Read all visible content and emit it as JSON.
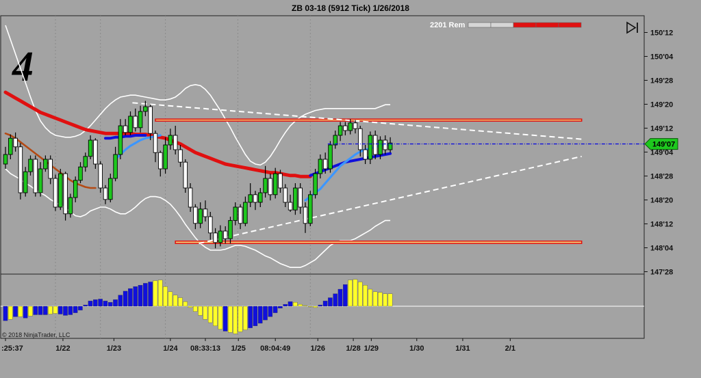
{
  "title": "ZB 03-18 (5912 Tick)  1/26/2018",
  "panel_number": "4",
  "bar_counter": {
    "text": "2201 Rem",
    "segments_remaining": 3,
    "segments_total": 5
  },
  "copyright": "© 2018 NinjaTrader, LLC",
  "last_price_label": "149'07",
  "colors": {
    "bg": "#a3a3a3",
    "up": "#1ec81e",
    "down": "#ffffff",
    "ema_slow": "#e01010",
    "ema_mid": "#b44a14",
    "ema_fast_blue": "#1010dc",
    "ema_fast_light": "#3c96ff",
    "hist_pos_blue": "#1010dc",
    "hist_yellow": "#ffff28",
    "box_outline": "#e01010",
    "box_fill": "#f0cc78",
    "price_marker": "#1ec81e"
  },
  "chart_data": {
    "type": "candlestick",
    "title": "ZB 03-18 (5912 Tick)  1/26/2018",
    "y_axis": {
      "ticks": [
        "150'12",
        "150'04",
        "149'28",
        "149'20",
        "149'12",
        "149'04",
        "148'28",
        "148'20",
        "148'12",
        "148'04",
        "147'28"
      ],
      "tick_values": [
        150.375,
        150.125,
        149.875,
        149.625,
        149.375,
        149.125,
        148.875,
        148.625,
        148.375,
        148.125,
        147.875
      ],
      "range": [
        147.85,
        150.55
      ]
    },
    "x_axis": {
      "ticks": [
        ":25:37",
        "1/22",
        "1/23",
        "1/24",
        "08:33:13",
        "1/25",
        "08:04:49",
        "1/26",
        "1/28",
        "1/29",
        "1/30",
        "1/31",
        "2/1"
      ],
      "tick_bars": [
        0,
        11.5,
        21.7,
        33,
        40,
        46.6,
        54,
        62.5,
        69.6,
        73.2,
        82.3,
        91.5,
        101
      ]
    },
    "session_lines_at_bar": [
      10,
      19,
      32,
      46.5,
      61
    ],
    "candles_open_close_high_low": [
      [
        149.0,
        149.1,
        149.18,
        148.95
      ],
      [
        149.1,
        149.27,
        149.31,
        149.05
      ],
      [
        149.27,
        149.18,
        149.33,
        149.13
      ],
      [
        149.18,
        148.7,
        149.22,
        148.63
      ],
      [
        148.7,
        148.92,
        148.97,
        148.66
      ],
      [
        148.92,
        149.05,
        149.09,
        148.88
      ],
      [
        149.05,
        148.7,
        149.09,
        148.66
      ],
      [
        148.7,
        148.95,
        149.02,
        148.66
      ],
      [
        148.95,
        149.05,
        149.09,
        148.92
      ],
      [
        149.05,
        148.85,
        149.09,
        148.79
      ],
      [
        148.85,
        148.55,
        148.89,
        148.51
      ],
      [
        148.55,
        148.9,
        148.95,
        148.52
      ],
      [
        148.9,
        148.48,
        148.92,
        148.41
      ],
      [
        148.48,
        148.65,
        148.69,
        148.44
      ],
      [
        148.65,
        148.83,
        148.87,
        148.6
      ],
      [
        148.83,
        148.97,
        149.02,
        148.8
      ],
      [
        148.97,
        149.08,
        149.12,
        148.92
      ],
      [
        149.08,
        149.25,
        149.3,
        149.05
      ],
      [
        149.25,
        149.0,
        149.27,
        148.95
      ],
      [
        149.0,
        148.75,
        149.03,
        148.7
      ],
      [
        148.75,
        148.63,
        148.78,
        148.58
      ],
      [
        148.63,
        148.85,
        148.9,
        148.6
      ],
      [
        148.85,
        149.1,
        149.18,
        148.82
      ],
      [
        149.1,
        149.4,
        149.47,
        149.05
      ],
      [
        149.4,
        149.33,
        149.47,
        149.3
      ],
      [
        149.33,
        149.5,
        149.55,
        149.3
      ],
      [
        149.5,
        149.38,
        149.58,
        149.34
      ],
      [
        149.38,
        149.55,
        149.61,
        149.33
      ],
      [
        149.55,
        149.6,
        149.66,
        149.5
      ],
      [
        149.6,
        149.32,
        149.62,
        149.25
      ],
      [
        149.32,
        149.12,
        149.35,
        149.02
      ],
      [
        149.12,
        148.95,
        149.14,
        148.87
      ],
      [
        148.95,
        149.2,
        149.28,
        148.9
      ],
      [
        149.2,
        149.3,
        149.37,
        149.15
      ],
      [
        149.3,
        149.15,
        149.4,
        149.1
      ],
      [
        149.15,
        149.02,
        149.2,
        148.97
      ],
      [
        149.02,
        148.75,
        149.05,
        148.7
      ],
      [
        148.75,
        148.55,
        148.8,
        148.5
      ],
      [
        148.55,
        148.38,
        148.58,
        148.32
      ],
      [
        148.38,
        148.53,
        148.6,
        148.33
      ],
      [
        148.53,
        148.45,
        148.62,
        148.4
      ],
      [
        148.45,
        148.28,
        148.5,
        148.21
      ],
      [
        148.28,
        148.18,
        148.33,
        148.12
      ],
      [
        148.18,
        148.3,
        148.36,
        148.14
      ],
      [
        148.3,
        148.22,
        148.35,
        148.17
      ],
      [
        148.22,
        148.41,
        148.45,
        148.17
      ],
      [
        148.41,
        148.55,
        148.6,
        148.36
      ],
      [
        148.55,
        148.38,
        148.58,
        148.32
      ],
      [
        148.38,
        148.6,
        148.66,
        148.35
      ],
      [
        148.6,
        148.68,
        148.8,
        148.55
      ],
      [
        148.68,
        148.6,
        148.72,
        148.52
      ],
      [
        148.6,
        148.7,
        148.75,
        148.55
      ],
      [
        148.7,
        148.85,
        148.98,
        148.65
      ],
      [
        148.85,
        148.68,
        148.9,
        148.62
      ],
      [
        148.68,
        148.9,
        148.96,
        148.64
      ],
      [
        148.9,
        148.75,
        148.94,
        148.7
      ],
      [
        148.75,
        148.6,
        148.79,
        148.55
      ],
      [
        148.6,
        148.52,
        148.68,
        148.5
      ],
      [
        148.52,
        148.75,
        148.8,
        148.47
      ],
      [
        148.75,
        148.55,
        148.8,
        148.48
      ],
      [
        148.55,
        148.38,
        148.6,
        148.28
      ],
      [
        148.38,
        148.68,
        148.72,
        148.35
      ],
      [
        148.68,
        148.9,
        148.95,
        148.64
      ],
      [
        148.9,
        149.05,
        149.1,
        148.85
      ],
      [
        149.05,
        148.95,
        149.12,
        148.9
      ],
      [
        148.95,
        149.2,
        149.24,
        148.91
      ],
      [
        149.2,
        149.3,
        149.35,
        149.16
      ],
      [
        149.3,
        149.4,
        149.44,
        149.24
      ],
      [
        149.4,
        149.35,
        149.44,
        149.3
      ],
      [
        149.35,
        149.43,
        149.47,
        149.31
      ],
      [
        149.43,
        149.37,
        149.46,
        149.32
      ],
      [
        149.37,
        149.15,
        149.4,
        149.08
      ],
      [
        149.15,
        149.05,
        149.2,
        149.0
      ],
      [
        149.05,
        149.3,
        149.34,
        149.0
      ],
      [
        149.3,
        149.1,
        149.35,
        149.05
      ],
      [
        149.1,
        149.25,
        149.29,
        149.05
      ],
      [
        149.25,
        149.15,
        149.3,
        149.1
      ],
      [
        149.15,
        149.22,
        149.28,
        149.12
      ]
    ],
    "series": [
      {
        "style": "thick red moving average",
        "values": [
          149.75,
          149.72,
          149.69,
          149.66,
          149.63,
          149.6,
          149.57,
          149.54,
          149.52,
          149.5,
          149.48,
          149.46,
          149.44,
          149.42,
          149.4,
          149.38,
          149.36,
          149.35,
          149.34,
          149.33,
          149.32,
          149.32,
          149.32,
          149.32,
          149.32,
          149.32,
          149.31,
          149.31,
          149.31,
          149.3,
          149.29,
          149.28,
          149.27,
          149.25,
          149.23,
          149.21,
          149.18,
          149.15,
          149.12,
          149.1,
          149.08,
          149.06,
          149.04,
          149.02,
          149.0,
          148.99,
          148.98,
          148.97,
          148.96,
          148.95,
          148.94,
          148.93,
          148.92,
          148.91,
          148.91,
          148.9,
          148.89,
          148.88,
          148.88,
          148.87,
          148.87,
          148.87
        ]
      },
      {
        "style": "brown moving average",
        "values": [
          149.32,
          149.3,
          149.27,
          149.23,
          149.19,
          149.15,
          149.11,
          149.07,
          149.03,
          148.99,
          148.95,
          148.91,
          148.87,
          148.83,
          148.8,
          148.78,
          148.76,
          148.75,
          148.75
        ]
      },
      {
        "style": "blue moving average",
        "start_bar": 20,
        "values": [
          149.27,
          149.27,
          149.28,
          149.28,
          149.29,
          149.29,
          149.3,
          149.3,
          149.3
        ]
      },
      {
        "style": "blue moving average",
        "start_bar": 61,
        "values": [
          148.88,
          148.9,
          148.92,
          148.94,
          148.96,
          148.98,
          149.0,
          149.02,
          149.03,
          149.04,
          149.05,
          149.06,
          149.07,
          149.08,
          149.09,
          149.1,
          149.11
        ]
      },
      {
        "style": "light blue moving average",
        "start_bar": 22,
        "values": [
          149.05,
          149.1,
          149.15,
          149.19,
          149.22,
          149.25,
          149.27,
          149.28,
          149.29,
          149.3
        ]
      },
      {
        "style": "light blue moving average",
        "start_bar": 60,
        "values": [
          148.62,
          148.66,
          148.7,
          148.74,
          148.8,
          148.86,
          148.92,
          148.98,
          149.02,
          149.06,
          149.1,
          149.13,
          149.15,
          149.16,
          149.18,
          149.19,
          149.2,
          149.2
        ]
      },
      {
        "style": "white band upper",
        "values": [
          150.45,
          150.3,
          150.15,
          150.0,
          149.85,
          149.7,
          149.56,
          149.45,
          149.38,
          149.33,
          149.3,
          149.29,
          149.28,
          149.28,
          149.29,
          149.31,
          149.35,
          149.4,
          149.46,
          149.52,
          149.58,
          149.63,
          149.67,
          149.7,
          149.71,
          149.72,
          149.72,
          149.71,
          149.7,
          149.69,
          149.68,
          149.67,
          149.67,
          149.68,
          149.7,
          149.74,
          149.79,
          149.82,
          149.83,
          149.82,
          149.78,
          149.72,
          149.64,
          149.56,
          149.47,
          149.38,
          149.28,
          149.19,
          149.1,
          149.03,
          149.0,
          148.99,
          149.02,
          149.08,
          149.16,
          149.25,
          149.33,
          149.4,
          149.45,
          149.49,
          149.52,
          149.54,
          149.56,
          149.57,
          149.58,
          149.58,
          149.58,
          149.58,
          149.58,
          149.58,
          149.58,
          149.58,
          149.58,
          149.58,
          149.58,
          149.6,
          149.62,
          149.62
        ]
      },
      {
        "style": "white band lower",
        "values": [
          148.95,
          148.9,
          148.87,
          148.84,
          148.8,
          148.77,
          148.73,
          148.7,
          148.67,
          148.63,
          148.6,
          148.57,
          148.54,
          148.5,
          148.46,
          148.45,
          148.47,
          148.51,
          148.53,
          148.55,
          148.55,
          148.53,
          148.5,
          148.48,
          148.48,
          148.51,
          148.55,
          148.6,
          148.64,
          148.66,
          148.66,
          148.65,
          148.62,
          148.58,
          148.52,
          148.45,
          148.37,
          148.3,
          148.23,
          148.17,
          148.13,
          148.1,
          148.1,
          148.1,
          148.11,
          148.13,
          148.15,
          148.15,
          148.14,
          148.12,
          148.1,
          148.07,
          148.04,
          148.02,
          147.99,
          147.96,
          147.94,
          147.92,
          147.92,
          147.92,
          147.94,
          147.97,
          148.0,
          148.05,
          148.1,
          148.15,
          148.18,
          148.2,
          148.2,
          148.2,
          148.22,
          148.25,
          148.28,
          148.31,
          148.35,
          148.38,
          148.41,
          148.41
        ]
      }
    ],
    "trendlines": [
      {
        "style": "white dashed",
        "from": [
          25.4,
          149.64
        ],
        "to": [
          115.3,
          149.26
        ]
      },
      {
        "style": "white dashed",
        "from": [
          38.7,
          148.17
        ],
        "to": [
          115.3,
          149.08
        ]
      }
    ],
    "horizontal_boxes": [
      {
        "from_bar": 30,
        "to_bar": 115.3,
        "top": 149.47,
        "bottom": 149.45
      },
      {
        "from_bar": 34,
        "to_bar": 115.3,
        "top": 148.195,
        "bottom": 148.17
      }
    ],
    "last_price_line": {
      "value": 149.21,
      "from_bar": 64.5
    },
    "histogram": {
      "zero_ref": "horizontal baseline",
      "values": [
        -2.2,
        -2.0,
        -1.6,
        -1.6,
        -1.8,
        -1.5,
        -1.3,
        -1.3,
        -1.3,
        -1.2,
        -1.1,
        -1.2,
        -1.4,
        -1.3,
        -1.0,
        -0.6,
        0.2,
        0.8,
        1.0,
        1.1,
        0.8,
        0.6,
        1.0,
        1.7,
        2.3,
        2.7,
        3.0,
        3.2,
        3.5,
        3.7,
        3.9,
        4.0,
        3.0,
        2.2,
        1.7,
        1.3,
        0.7,
        -0.2,
        -0.8,
        -1.4,
        -2.0,
        -2.5,
        -3.0,
        -3.5,
        -3.8,
        -4.0,
        -4.2,
        -3.9,
        -3.6,
        -3.3,
        -3.0,
        -2.6,
        -2.1,
        -1.6,
        -1.0,
        -0.3,
        0.3,
        0.7,
        0.6,
        0.3,
        0.1,
        -0.1,
        -0.2,
        0.2,
        0.8,
        1.3,
        1.9,
        2.6,
        3.3,
        4.0,
        4.1,
        3.7,
        3.2,
        2.6,
        2.2,
        2.1,
        1.9,
        1.9
      ],
      "colors": [
        "b",
        "y",
        "b",
        "y",
        "b",
        "y",
        "b",
        "b",
        "b",
        "y",
        "y",
        "b",
        "b",
        "b",
        "b",
        "b",
        "b",
        "b",
        "b",
        "b",
        "b",
        "b",
        "b",
        "b",
        "b",
        "b",
        "b",
        "b",
        "b",
        "b",
        "y",
        "y",
        "y",
        "y",
        "y",
        "y",
        "y",
        "y",
        "y",
        "y",
        "y",
        "y",
        "y",
        "y",
        "b",
        "y",
        "y",
        "y",
        "y",
        "b",
        "b",
        "b",
        "b",
        "b",
        "b",
        "b",
        "b",
        "b",
        "y",
        "y",
        "y",
        "y",
        "y",
        "b",
        "b",
        "b",
        "b",
        "b",
        "b",
        "y",
        "y",
        "y",
        "y",
        "y",
        "y",
        "y",
        "y",
        "y"
      ]
    }
  }
}
